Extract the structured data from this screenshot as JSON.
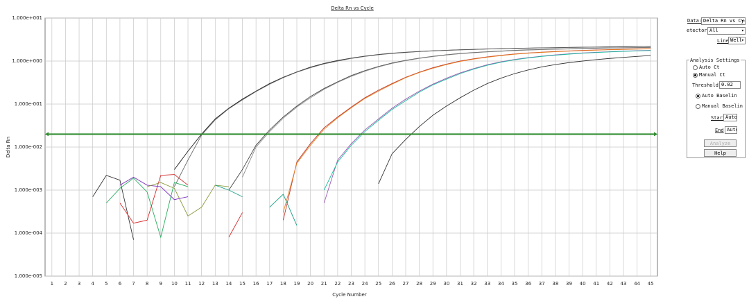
{
  "chart_data": {
    "type": "line",
    "title": "Delta Rn vs Cycle",
    "xlabel": "Cycle Number",
    "ylabel": "Delta Rn",
    "log_scale": true,
    "grid": true,
    "threshold": 0.02,
    "threshold_color": "#2e8b2e",
    "x": [
      1,
      2,
      3,
      4,
      5,
      6,
      7,
      8,
      9,
      10,
      11,
      12,
      13,
      14,
      15,
      16,
      17,
      18,
      19,
      20,
      21,
      22,
      23,
      24,
      25,
      26,
      27,
      28,
      29,
      30,
      31,
      32,
      33,
      34,
      35,
      36,
      37,
      38,
      39,
      40,
      41,
      42,
      43,
      44,
      45
    ],
    "xlim": [
      0.5,
      45.5
    ],
    "xticks": [
      1,
      2,
      3,
      4,
      5,
      6,
      7,
      8,
      9,
      10,
      11,
      12,
      13,
      14,
      15,
      16,
      17,
      18,
      19,
      20,
      21,
      22,
      23,
      24,
      25,
      26,
      27,
      28,
      29,
      30,
      31,
      32,
      33,
      34,
      35,
      36,
      37,
      38,
      39,
      40,
      41,
      42,
      43,
      44,
      45
    ],
    "ylim": [
      1e-05,
      10
    ],
    "yticks": [
      {
        "value": 10,
        "label": "1.000e+001"
      },
      {
        "value": 1,
        "label": "1.000e+000"
      },
      {
        "value": 0.1,
        "label": "1.000e-001"
      },
      {
        "value": 0.01,
        "label": "1.000e-002"
      },
      {
        "value": 0.001,
        "label": "1.000e-003"
      },
      {
        "value": 0.0001,
        "label": "1.000e-004"
      },
      {
        "value": 1e-05,
        "label": "1.000e-005"
      }
    ],
    "series": [
      {
        "color": "#222222",
        "values": [
          null,
          null,
          null,
          null,
          null,
          null,
          null,
          null,
          null,
          0.003,
          0.008,
          0.02,
          0.045,
          0.08,
          0.13,
          0.2,
          0.3,
          0.42,
          0.56,
          0.72,
          0.88,
          1.03,
          1.17,
          1.3,
          1.42,
          1.52,
          1.6,
          1.67,
          1.73,
          1.78,
          1.83,
          1.87,
          1.91,
          1.94,
          1.97,
          2.0,
          2.03,
          2.05,
          2.08,
          2.1,
          2.12,
          2.14,
          2.16,
          2.18,
          2.2
        ]
      },
      {
        "color": "#666666",
        "values": [
          null,
          null,
          null,
          null,
          null,
          null,
          null,
          null,
          null,
          0.0012,
          0.005,
          0.019,
          0.043,
          0.078,
          0.125,
          0.195,
          0.29,
          0.41,
          0.55,
          0.7,
          0.86,
          1.0,
          1.15,
          1.28,
          1.4,
          1.5,
          1.58,
          1.66,
          1.72,
          1.77,
          1.82,
          1.86,
          1.9,
          1.93,
          1.96,
          1.99,
          2.02,
          2.04,
          2.07,
          2.09,
          2.11,
          2.13,
          2.15,
          2.17,
          2.19
        ]
      },
      {
        "color": "#444444",
        "values": [
          null,
          null,
          null,
          null,
          null,
          null,
          null,
          null,
          null,
          null,
          null,
          null,
          null,
          0.001,
          0.003,
          0.011,
          0.025,
          0.05,
          0.09,
          0.15,
          0.23,
          0.33,
          0.46,
          0.6,
          0.75,
          0.9,
          1.04,
          1.17,
          1.29,
          1.4,
          1.5,
          1.58,
          1.65,
          1.71,
          1.77,
          1.82,
          1.86,
          1.9,
          1.93,
          1.96,
          1.99,
          2.02,
          2.04,
          2.06,
          2.08
        ]
      },
      {
        "color": "#888888",
        "values": [
          null,
          null,
          null,
          null,
          null,
          null,
          null,
          null,
          null,
          null,
          null,
          null,
          null,
          null,
          0.002,
          0.01,
          0.023,
          0.047,
          0.085,
          0.14,
          0.22,
          0.32,
          0.44,
          0.58,
          0.73,
          0.88,
          1.02,
          1.15,
          1.27,
          1.38,
          1.48,
          1.56,
          1.63,
          1.69,
          1.75,
          1.8,
          1.84,
          1.88,
          1.91,
          1.94,
          1.97,
          2.0,
          2.02,
          2.04,
          2.06
        ]
      },
      {
        "color": "#c0392b",
        "values": [
          null,
          null,
          null,
          null,
          null,
          null,
          null,
          null,
          null,
          null,
          null,
          null,
          null,
          null,
          null,
          null,
          null,
          0.0002,
          0.0045,
          0.012,
          0.028,
          0.05,
          0.085,
          0.14,
          0.21,
          0.3,
          0.42,
          0.55,
          0.7,
          0.85,
          1.0,
          1.13,
          1.25,
          1.36,
          1.46,
          1.54,
          1.61,
          1.67,
          1.72,
          1.77,
          1.81,
          1.85,
          1.88,
          1.91,
          1.94
        ]
      },
      {
        "color": "#e67e22",
        "values": [
          null,
          null,
          null,
          null,
          null,
          null,
          null,
          null,
          null,
          null,
          null,
          null,
          null,
          null,
          null,
          null,
          null,
          0.0003,
          0.0042,
          0.011,
          0.026,
          0.048,
          0.082,
          0.135,
          0.2,
          0.29,
          0.41,
          0.54,
          0.68,
          0.83,
          0.98,
          1.11,
          1.23,
          1.34,
          1.44,
          1.52,
          1.59,
          1.65,
          1.7,
          1.75,
          1.79,
          1.83,
          1.86,
          1.89,
          1.92
        ]
      },
      {
        "color": "#9b59b6",
        "values": [
          null,
          null,
          null,
          null,
          null,
          null,
          null,
          null,
          null,
          null,
          null,
          null,
          null,
          null,
          null,
          null,
          null,
          null,
          null,
          null,
          0.0005,
          0.005,
          0.012,
          0.025,
          0.045,
          0.08,
          0.13,
          0.2,
          0.29,
          0.4,
          0.53,
          0.67,
          0.82,
          0.96,
          1.09,
          1.2,
          1.3,
          1.39,
          1.47,
          1.54,
          1.6,
          1.65,
          1.7,
          1.74,
          1.78
        ]
      },
      {
        "color": "#1abc9c",
        "values": [
          null,
          null,
          null,
          null,
          null,
          null,
          null,
          null,
          null,
          null,
          null,
          null,
          null,
          null,
          null,
          null,
          null,
          null,
          null,
          null,
          0.001,
          0.0045,
          0.011,
          0.023,
          0.042,
          0.075,
          0.12,
          0.19,
          0.28,
          0.38,
          0.51,
          0.65,
          0.8,
          0.94,
          1.07,
          1.18,
          1.28,
          1.37,
          1.45,
          1.52,
          1.58,
          1.63,
          1.68,
          1.72,
          1.76
        ]
      },
      {
        "color": "#333333",
        "values": [
          null,
          null,
          null,
          null,
          null,
          null,
          null,
          null,
          null,
          null,
          null,
          null,
          null,
          null,
          null,
          null,
          null,
          null,
          null,
          null,
          null,
          null,
          null,
          null,
          0.0014,
          0.007,
          0.015,
          0.03,
          0.055,
          0.09,
          0.14,
          0.21,
          0.3,
          0.4,
          0.51,
          0.62,
          0.73,
          0.83,
          0.92,
          1.0,
          1.08,
          1.15,
          1.22,
          1.28,
          1.35
        ]
      },
      {
        "color": "#333333",
        "values": [
          null,
          null,
          null,
          0.0007,
          0.0022,
          0.0017,
          7e-05,
          null,
          null,
          null,
          null,
          null,
          null,
          null,
          null,
          null,
          null,
          null,
          null,
          null,
          null,
          null,
          null,
          null,
          null,
          null,
          null,
          null,
          null,
          null,
          null,
          null,
          null,
          null,
          null,
          null,
          null,
          null,
          null,
          null,
          null,
          null,
          null,
          null,
          null
        ]
      },
      {
        "color": "#27ae60",
        "values": [
          null,
          null,
          null,
          null,
          0.0005,
          0.0011,
          0.0019,
          0.0009,
          8e-05,
          0.0015,
          0.0012,
          null,
          null,
          null,
          null,
          null,
          null,
          null,
          null,
          null,
          null,
          null,
          null,
          null,
          null,
          null,
          null,
          null,
          null,
          null,
          null,
          null,
          null,
          null,
          null,
          null,
          null,
          null,
          null,
          null,
          null,
          null,
          null,
          null,
          null
        ]
      },
      {
        "color": "#d62828",
        "values": [
          null,
          null,
          null,
          null,
          null,
          0.0005,
          0.00017,
          0.0002,
          0.0022,
          0.0023,
          0.0013,
          null,
          null,
          null,
          null,
          null,
          null,
          null,
          null,
          null,
          null,
          null,
          null,
          null,
          null,
          null,
          null,
          null,
          null,
          null,
          null,
          null,
          null,
          null,
          null,
          null,
          null,
          null,
          null,
          null,
          null,
          null,
          null,
          null,
          null
        ]
      },
      {
        "color": "#7b2cbf",
        "values": [
          null,
          null,
          null,
          null,
          null,
          0.0013,
          0.002,
          0.0013,
          0.0012,
          0.0006,
          0.0007,
          null,
          null,
          null,
          null,
          null,
          null,
          null,
          null,
          null,
          null,
          null,
          null,
          null,
          null,
          null,
          null,
          null,
          null,
          null,
          null,
          null,
          null,
          null,
          null,
          null,
          null,
          null,
          null,
          null,
          null,
          null,
          null,
          null,
          null
        ]
      },
      {
        "color": "#8a9a3b",
        "values": [
          null,
          null,
          null,
          null,
          null,
          null,
          null,
          0.0012,
          0.0015,
          0.0011,
          0.00025,
          0.0004,
          0.0013,
          0.0012,
          null,
          null,
          null,
          null,
          null,
          null,
          null,
          null,
          null,
          null,
          null,
          null,
          null,
          null,
          null,
          null,
          null,
          null,
          null,
          null,
          null,
          null,
          null,
          null,
          null,
          null,
          null,
          null,
          null,
          null,
          null
        ]
      },
      {
        "color": "#16a085",
        "values": [
          null,
          null,
          null,
          null,
          null,
          null,
          null,
          null,
          null,
          null,
          null,
          null,
          0.0013,
          0.001,
          0.0007,
          null,
          0.0004,
          0.0008,
          0.00015,
          null,
          null,
          null,
          null,
          null,
          null,
          null,
          null,
          null,
          null,
          null,
          null,
          null,
          null,
          null,
          null,
          null,
          null,
          null,
          null,
          null,
          null,
          null,
          null,
          null,
          null
        ]
      },
      {
        "color": "#d62828",
        "values": [
          null,
          null,
          null,
          null,
          null,
          null,
          null,
          null,
          null,
          null,
          null,
          null,
          null,
          8e-05,
          0.0003,
          null,
          null,
          null,
          null,
          null,
          null,
          null,
          null,
          null,
          null,
          null,
          null,
          null,
          null,
          null,
          null,
          null,
          null,
          null,
          null,
          null,
          null,
          null,
          null,
          null,
          null,
          null,
          null,
          null,
          null
        ]
      }
    ]
  },
  "panel": {
    "data_label": "Data:",
    "data_value": "Delta Rn vs Cycl",
    "detector_label": "etector:",
    "detector_value": "All",
    "line_label": "Line",
    "line_value": "Well Color",
    "group_title": "Analysis Settings",
    "auto_ct": "Auto Ct",
    "manual_ct": "Manual Ct",
    "threshold_label": "Threshold:",
    "auto_baseline": "Auto Baselin",
    "manual_baseline": "Manual Baselin",
    "start_label": "Start",
    "start_value": "Auto",
    "end_label": "End",
    "end_value": "Auto",
    "analyze": "Analyze",
    "help": "Help"
  }
}
